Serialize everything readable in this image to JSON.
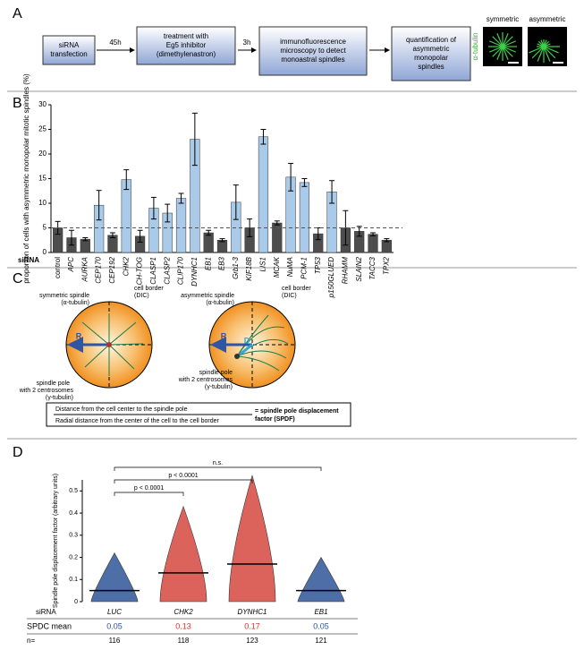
{
  "panels": [
    "A",
    "B",
    "C",
    "D"
  ],
  "workflow": {
    "steps": [
      [
        "siRNA",
        "transfection"
      ],
      [
        "treatment with",
        "Eg5 inhibitor",
        "(dimethylenastron)"
      ],
      [
        "immunofluorescence",
        "microscopy to detect",
        "monoastral spindles"
      ],
      [
        "quantification of",
        "asymmetric",
        "monopolar",
        "spindles"
      ]
    ],
    "times": [
      "45h",
      "3h"
    ],
    "image_labels": [
      "symmetric",
      "asymmetric"
    ],
    "stain": "α-tubulin"
  },
  "diagram": {
    "left": [
      "symmetric spindle",
      "(α-tubulin)",
      "cell border",
      "(DIC)",
      "R",
      "spindle pole",
      "with 2 centrosomes",
      "(γ-tubulin)"
    ],
    "right": [
      "asymmetric spindle",
      "(α-tubulin)",
      "cell border",
      "(DIC)",
      "R",
      "D",
      "spindle pole",
      "with 2 centrosomes",
      "(γ-tubulin)"
    ],
    "formula": [
      "Distance from the cell center to the spindle pole",
      "Radial distance from the center of the cell to the cell border",
      "= spindle pole displacement",
      "factor (SPDF)"
    ]
  },
  "chart_data": [
    {
      "type": "bar",
      "ylabel": "proportion of cells with asymmetric monopolar mitotic spindles (%)",
      "xlabel": "siRNA",
      "categories": [
        "control",
        "APC",
        "AURKA",
        "CEP170",
        "CEP192",
        "CHK2",
        "CH-TOG",
        "CLASP1",
        "CLASP2",
        "CLIP170",
        "DYNHC1",
        "EB1",
        "EB3",
        "Grb1-3",
        "KIF18B",
        "LIS1",
        "MCAK",
        "NuMA",
        "PCM-1",
        "TP53",
        "p150GLUED",
        "RHAMM",
        "SLAIN2",
        "TACC3",
        "TPX2"
      ],
      "values": [
        5,
        3,
        2.7,
        9.6,
        3.5,
        14.8,
        3.3,
        9,
        8,
        11,
        23,
        4,
        2.5,
        10.2,
        5,
        23.5,
        6,
        15.3,
        14.2,
        3.8,
        12.3,
        5,
        4.3,
        3.7,
        2.5
      ],
      "errors": [
        1.3,
        1.5,
        0.3,
        3,
        0.5,
        2,
        1.2,
        2.2,
        1.8,
        1,
        5.3,
        0.5,
        0.3,
        3.5,
        1.8,
        1.5,
        0.4,
        2.8,
        0.8,
        1.2,
        2.3,
        3.5,
        1,
        0.3,
        0.3
      ],
      "colors": [
        "#4d4d4d",
        "#4d4d4d",
        "#4d4d4d",
        "#a9cbe9",
        "#4d4d4d",
        "#a9cbe9",
        "#4d4d4d",
        "#a9cbe9",
        "#a9cbe9",
        "#a9cbe9",
        "#a9cbe9",
        "#4d4d4d",
        "#4d4d4d",
        "#a9cbe9",
        "#4d4d4d",
        "#a9cbe9",
        "#4d4d4d",
        "#a9cbe9",
        "#a9cbe9",
        "#4d4d4d",
        "#a9cbe9",
        "#4d4d4d",
        "#4d4d4d",
        "#4d4d4d",
        "#4d4d4d"
      ],
      "threshold": 5,
      "ylim": [
        0,
        30
      ],
      "yticks": [
        0,
        5,
        10,
        15,
        20,
        25,
        30
      ]
    },
    {
      "type": "dot",
      "ylabel": "Spindle pole displacement factor (arbitrary units)",
      "xlabel": "siRNA",
      "categories": [
        "LUC",
        "CHK2",
        "DYNHC1",
        "EB1"
      ],
      "max": [
        0.22,
        0.43,
        0.57,
        0.2
      ],
      "colors": [
        "#3a5f9e",
        "#d9534a",
        "#d9534a",
        "#3a5f9e"
      ],
      "mean_label": "SPDC mean",
      "means": [
        0.05,
        0.13,
        0.17,
        0.05
      ],
      "mean_colors": [
        "#2c56a0",
        "#d9342b",
        "#d9342b",
        "#2c56a0"
      ],
      "n_label": "n=",
      "n": [
        116,
        118,
        123,
        121
      ],
      "comparisons": [
        {
          "from": 0,
          "to": 3,
          "label": "n.s."
        },
        {
          "from": 0,
          "to": 2,
          "label": "p < 0.0001"
        },
        {
          "from": 0,
          "to": 1,
          "label": "p < 0.0001"
        }
      ],
      "ylim": [
        0,
        0.55
      ],
      "yticks": [
        0,
        0.1,
        0.2,
        0.3,
        0.4,
        0.5
      ]
    }
  ]
}
